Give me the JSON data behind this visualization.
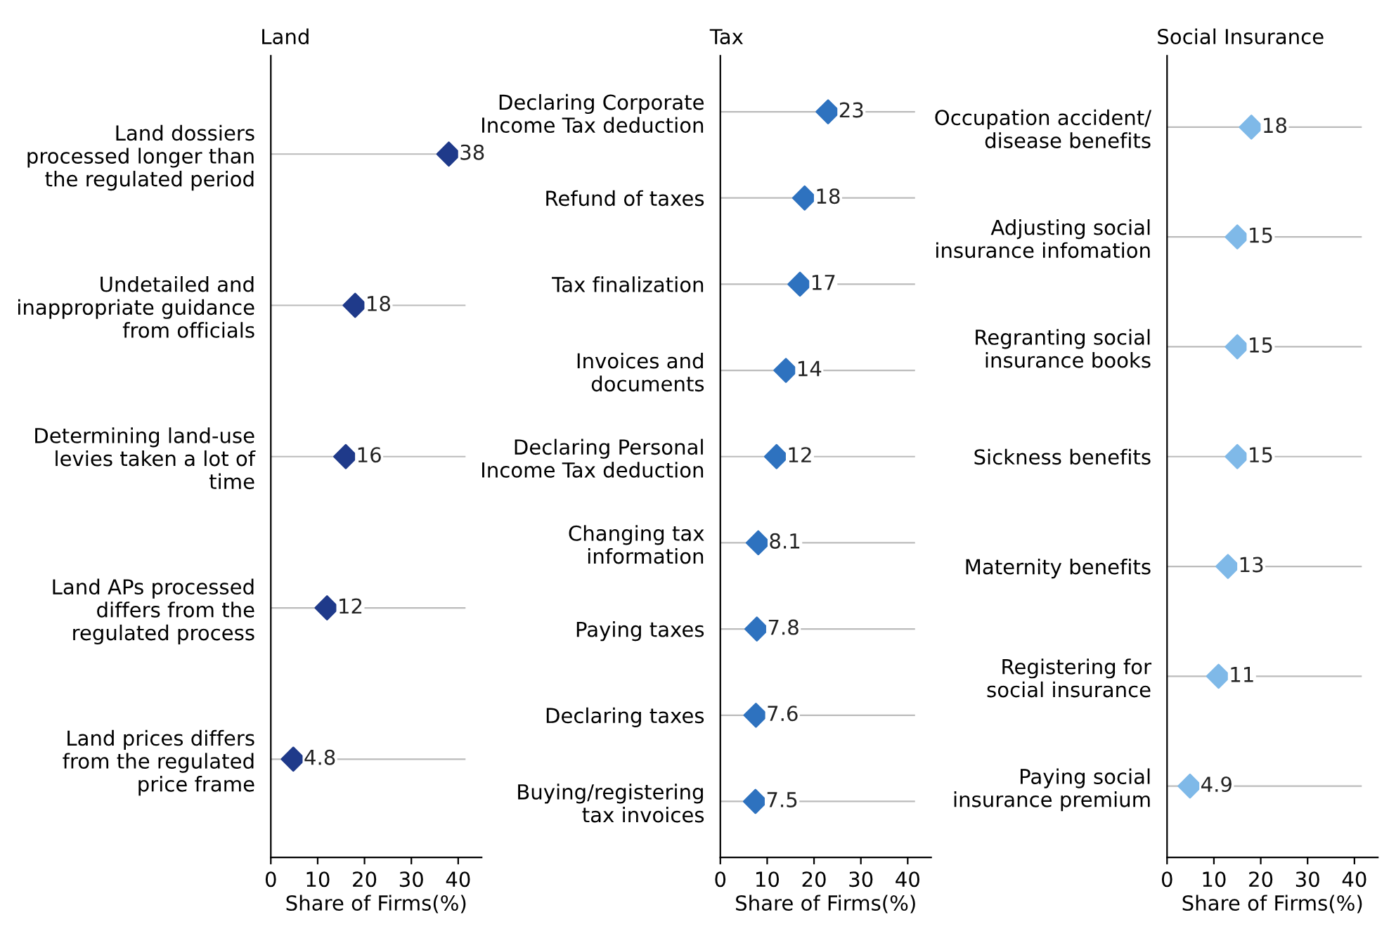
{
  "chart_data": [
    {
      "type": "scatter",
      "title": "Land",
      "xlabel": "Share of Firms(%)",
      "categories": [
        "Land dossiers\nprocessed longer than\nthe regulated period",
        "Undetailed and\ninappropriate guidance\nfrom officials",
        "Determining land-use\nlevies taken a lot of\ntime",
        "Land APs processed\ndiffers from the\nregulated process",
        "Land prices differs\nfrom the regulated\nprice frame"
      ],
      "orientation": "horizontal",
      "series": [
        {
          "color": "#1f3a8a",
          "values": [
            38,
            18,
            16,
            12,
            4.8
          ]
        }
      ],
      "xlim": [
        0,
        45
      ],
      "xticks": [
        0,
        10,
        20,
        30,
        40
      ],
      "grid": "y",
      "marker": "diamond",
      "data_labels": true
    },
    {
      "type": "scatter",
      "title": "Tax",
      "xlabel": "Share of Firms(%)",
      "categories": [
        "Declaring Corporate\nIncome Tax deduction",
        "Refund of taxes",
        "Tax finalization",
        "Invoices and\ndocuments",
        "Declaring Personal\nIncome Tax deduction",
        "Changing tax\ninformation",
        "Paying taxes",
        "Declaring taxes",
        "Buying/registering\ntax invoices"
      ],
      "orientation": "horizontal",
      "series": [
        {
          "color": "#2e72bf",
          "values": [
            23,
            18,
            17,
            14,
            12,
            8.1,
            7.8,
            7.6,
            7.5
          ]
        }
      ],
      "xlim": [
        0,
        45
      ],
      "xticks": [
        0,
        10,
        20,
        30,
        40
      ],
      "grid": "y",
      "marker": "diamond",
      "data_labels": true
    },
    {
      "type": "scatter",
      "title": "Social Insurance",
      "xlabel": "Share of Firms(%)",
      "categories": [
        "Occupation accident/\ndisease benefits",
        "Adjusting social\ninsurance infomation",
        "Regranting social\ninsurance books",
        "Sickness benefits",
        "Maternity benefits",
        "Registering for\nsocial insurance",
        "Paying social\ninsurance premium"
      ],
      "orientation": "horizontal",
      "series": [
        {
          "color": "#7fb9e8",
          "values": [
            18,
            15,
            15,
            15,
            13,
            11,
            4.9
          ]
        }
      ],
      "xlim": [
        0,
        45
      ],
      "xticks": [
        0,
        10,
        20,
        30,
        40
      ],
      "grid": "y",
      "marker": "diamond",
      "data_labels": true
    }
  ]
}
